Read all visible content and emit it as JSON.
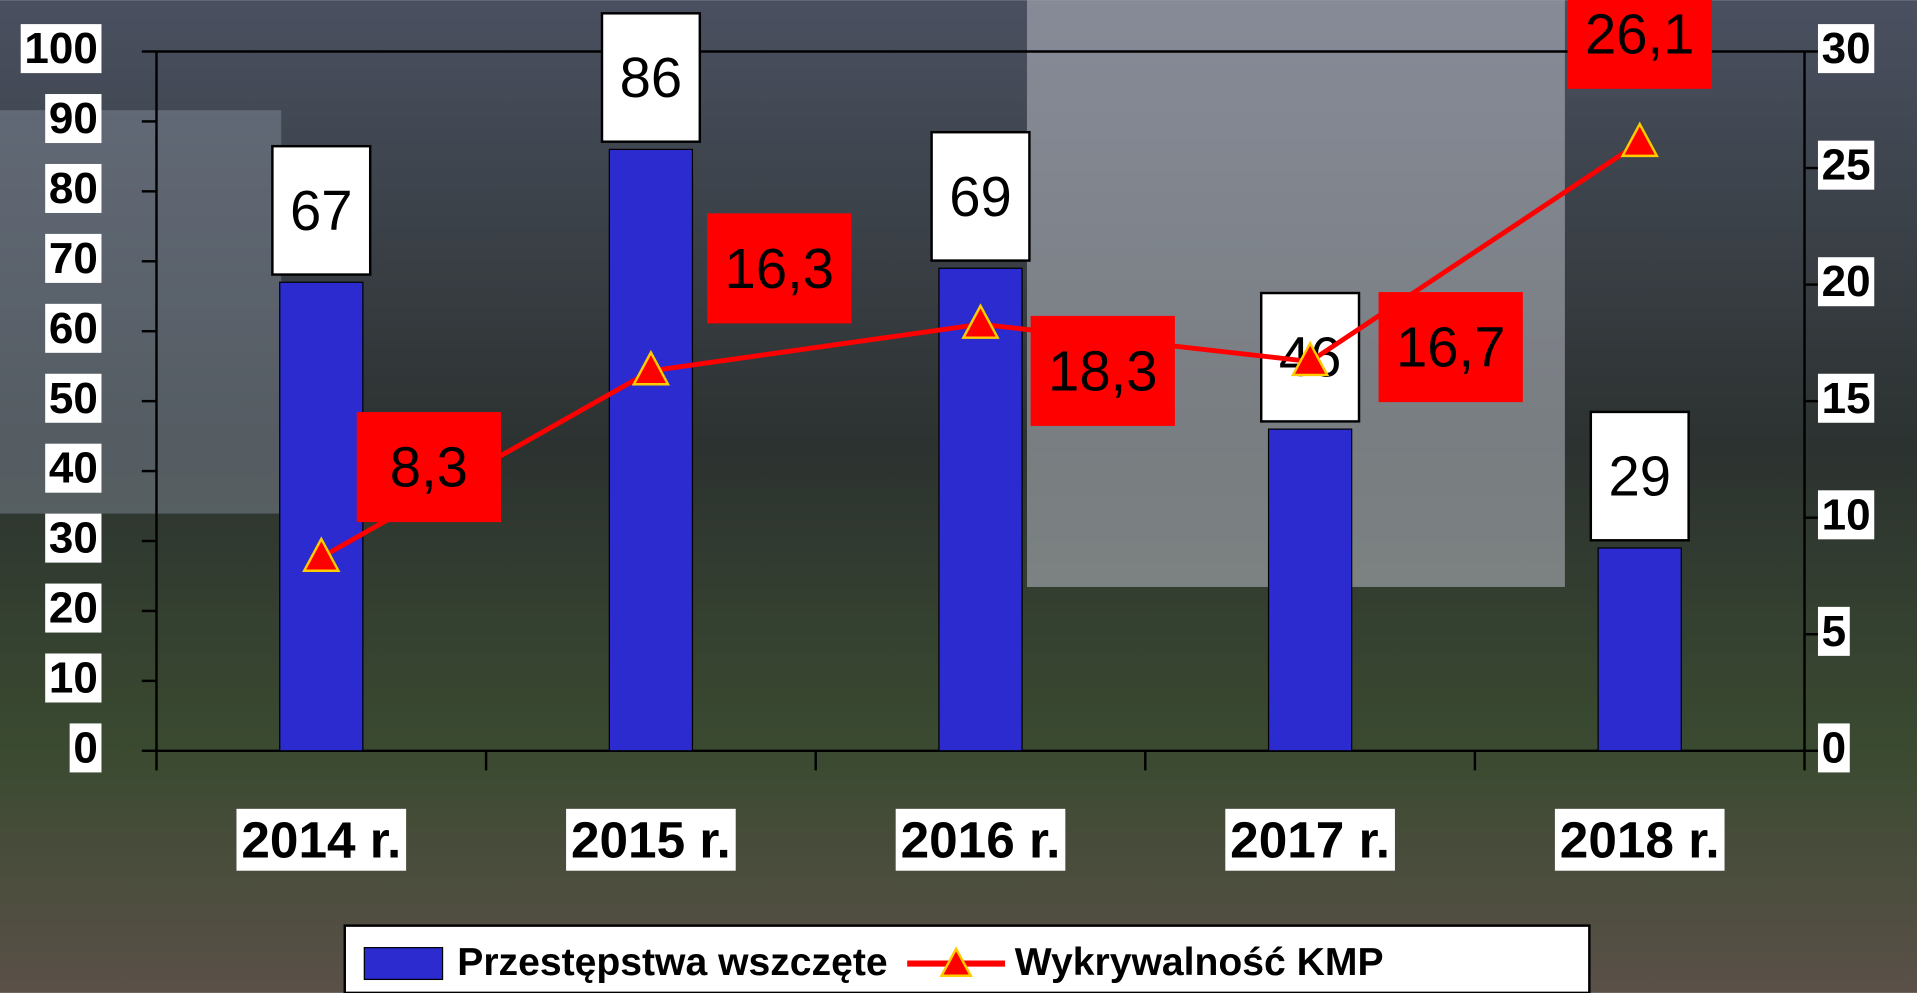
{
  "chart_data": {
    "type": "bar_line",
    "categories": [
      "2014 r.",
      "2015 r.",
      "2016 r.",
      "2017 r.",
      "2018 r."
    ],
    "series": [
      {
        "name": "Przestępstwa wszczęte",
        "type": "bar",
        "color": "#2b2bcf",
        "values": [
          67,
          86,
          69,
          46,
          29
        ]
      },
      {
        "name": "Wykrywalność KMP",
        "type": "line",
        "axis": "y2",
        "color": "#ff0000",
        "values": [
          8.3,
          16.3,
          18.3,
          16.7,
          26.1
        ],
        "value_labels": [
          "8,3",
          "16,3",
          "18,3",
          "16,7",
          "26,1"
        ]
      }
    ],
    "ylim": [
      0,
      100
    ],
    "yticks": [
      0,
      10,
      20,
      30,
      40,
      50,
      60,
      70,
      80,
      90,
      100
    ],
    "y2lim": [
      0,
      30
    ],
    "y2ticks": [
      0,
      5,
      10,
      15,
      20,
      25,
      30
    ],
    "legend": "bottom"
  }
}
